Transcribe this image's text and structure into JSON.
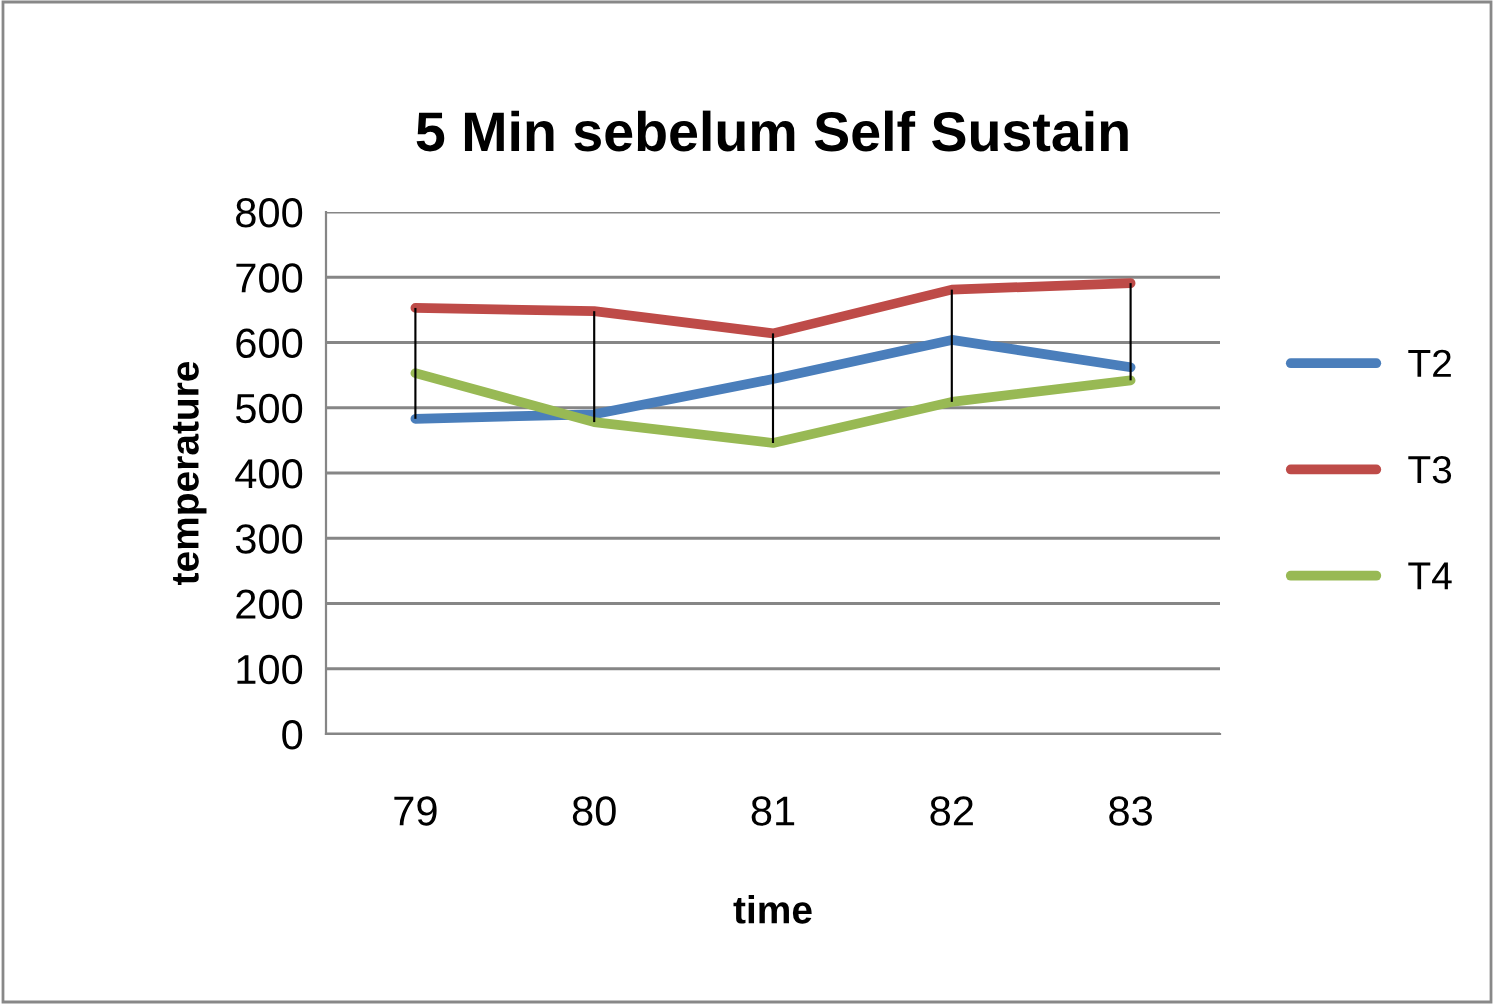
{
  "chart_data": {
    "type": "line",
    "title": "5 Min sebelum Self Sustain",
    "xlabel": "time",
    "ylabel": "temperature",
    "categories": [
      "79",
      "80",
      "81",
      "82",
      "83"
    ],
    "series": [
      {
        "name": "T2",
        "color": "#4a7ebb",
        "values": [
          483,
          490,
          544,
          604,
          562
        ]
      },
      {
        "name": "T3",
        "color": "#be4b48",
        "values": [
          653,
          648,
          614,
          681,
          691
        ]
      },
      {
        "name": "T4",
        "color": "#98b954",
        "values": [
          553,
          478,
          446,
          509,
          542
        ]
      },
      {
        "type": "bar",
        "color": "#000000",
        "base": [
          483,
          478,
          446,
          509,
          542
        ],
        "values": [
          170,
          170,
          168,
          172,
          149
        ]
      }
    ],
    "ylim": [
      0,
      800
    ],
    "yticks": [
      0,
      100,
      200,
      300,
      400,
      500,
      600,
      700,
      800
    ],
    "grid": "y",
    "legend": "right"
  }
}
